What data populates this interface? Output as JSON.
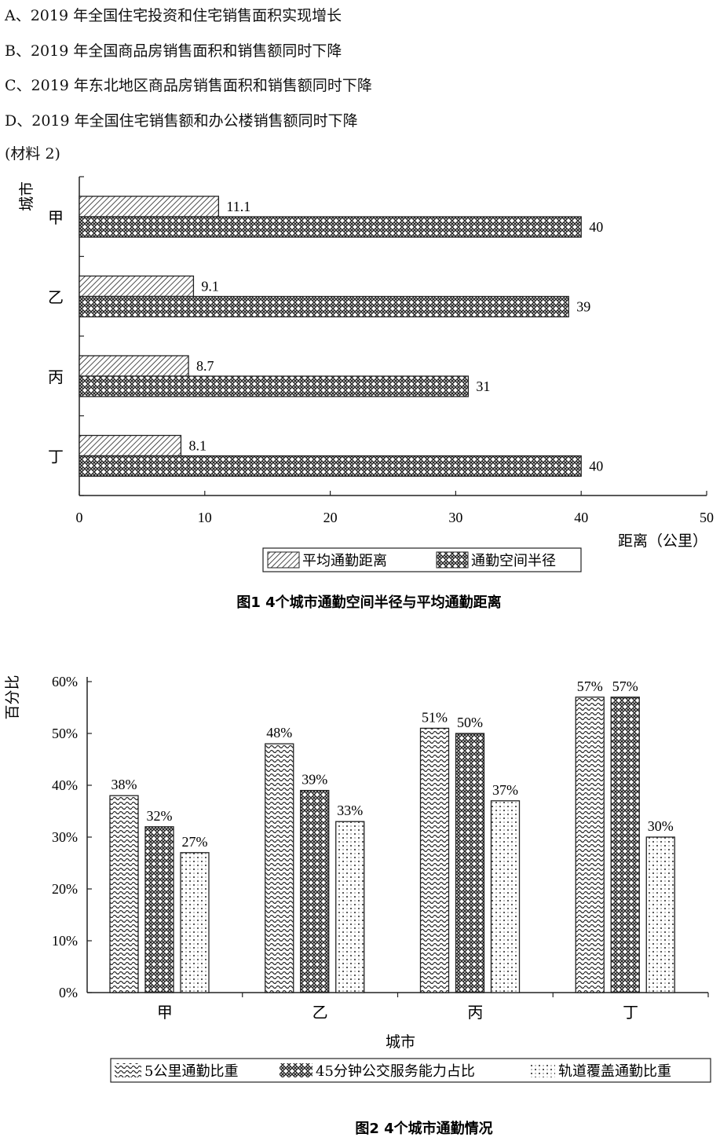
{
  "options": [
    "A、2019 年全国住宅投资和住宅销售面积实现增长",
    "B、2019 年全国商品房销售面积和销售额同时下降",
    "C、2019 年东北地区商品房销售面积和销售额同时下降",
    "D、2019 年全国住宅销售额和办公楼销售额同时下降"
  ],
  "material_label": "(材料 2)",
  "chart_data": [
    {
      "type": "bar",
      "orientation": "horizontal",
      "title": "图1   4个城市通勤空间半径与平均通勤距离",
      "ylabel": "城市",
      "xlabel": "距离（公里）",
      "categories": [
        "甲",
        "乙",
        "丙",
        "丁"
      ],
      "x_ticks": [
        "0",
        "10",
        "20",
        "30",
        "40",
        "50"
      ],
      "xlim": [
        0,
        50
      ],
      "series": [
        {
          "name": "平均通勤距离",
          "values": [
            11.1,
            9.1,
            8.7,
            8.1
          ],
          "labels": [
            "11.1",
            "9.1",
            "8.7",
            "8.1"
          ],
          "pattern": "diagonal-hatch"
        },
        {
          "name": "通勤空间半径",
          "values": [
            40,
            39,
            31,
            40
          ],
          "labels": [
            "40",
            "39",
            "31",
            "40"
          ],
          "pattern": "weave"
        }
      ],
      "legend_position": "bottom-center",
      "grid": false
    },
    {
      "type": "bar",
      "orientation": "vertical",
      "title": "图2   4个城市通勤情况",
      "ylabel": "百分比",
      "xlabel": "城市",
      "categories": [
        "甲",
        "乙",
        "丙",
        "丁"
      ],
      "y_ticks": [
        "0%",
        "10%",
        "20%",
        "30%",
        "40%",
        "50%",
        "60%"
      ],
      "ylim": [
        0,
        60
      ],
      "series": [
        {
          "name": "5公里通勤比重",
          "values": [
            38,
            48,
            51,
            57
          ],
          "labels": [
            "38%",
            "48%",
            "51%",
            "57%"
          ],
          "pattern": "wavy"
        },
        {
          "name": "45分钟公交服务能力占比",
          "values": [
            32,
            39,
            50,
            57
          ],
          "labels": [
            "32%",
            "39%",
            "50%",
            "57%"
          ],
          "pattern": "weave"
        },
        {
          "name": "轨道覆盖通勤比重",
          "values": [
            27,
            33,
            37,
            30
          ],
          "labels": [
            "27%",
            "33%",
            "37%",
            "30%"
          ],
          "pattern": "dotted"
        }
      ],
      "legend_position": "bottom-center",
      "grid": false
    }
  ]
}
